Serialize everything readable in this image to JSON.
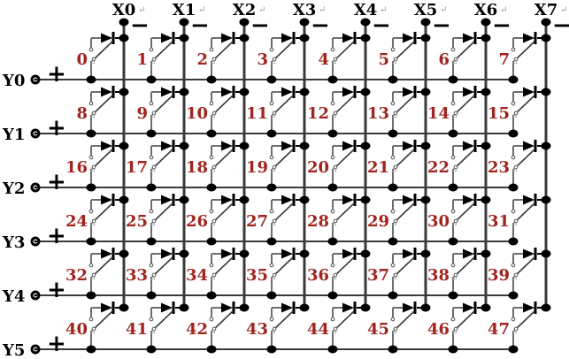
{
  "diagram": {
    "kind": "keyboard-matrix-circuit",
    "return_mark": "↵",
    "columns": [
      {
        "label": "X0",
        "sign": "−"
      },
      {
        "label": "X1",
        "sign": "−"
      },
      {
        "label": "X2",
        "sign": "−"
      },
      {
        "label": "X3",
        "sign": "−"
      },
      {
        "label": "X4",
        "sign": "−"
      },
      {
        "label": "X5",
        "sign": "−"
      },
      {
        "label": "X6",
        "sign": "−"
      },
      {
        "label": "X7",
        "sign": "−"
      }
    ],
    "rows": [
      {
        "label": "Y0",
        "sign": "+"
      },
      {
        "label": "Y1",
        "sign": "+"
      },
      {
        "label": "Y2",
        "sign": "+"
      },
      {
        "label": "Y3",
        "sign": "+"
      },
      {
        "label": "Y4",
        "sign": "+"
      },
      {
        "label": "Y5",
        "sign": "+"
      }
    ],
    "cells": [
      {
        "label": "0"
      },
      {
        "label": "1"
      },
      {
        "label": "2"
      },
      {
        "label": "3"
      },
      {
        "label": "4"
      },
      {
        "label": "5"
      },
      {
        "label": "6"
      },
      {
        "label": "7"
      },
      {
        "label": "8"
      },
      {
        "label": "9"
      },
      {
        "label": "10"
      },
      {
        "label": "11"
      },
      {
        "label": "12"
      },
      {
        "label": "13"
      },
      {
        "label": "14"
      },
      {
        "label": "15"
      },
      {
        "label": "16"
      },
      {
        "label": "17"
      },
      {
        "label": "18"
      },
      {
        "label": "19"
      },
      {
        "label": "20"
      },
      {
        "label": "21"
      },
      {
        "label": "22"
      },
      {
        "label": "23"
      },
      {
        "label": "24"
      },
      {
        "label": "25"
      },
      {
        "label": "26"
      },
      {
        "label": "27"
      },
      {
        "label": "28"
      },
      {
        "label": "29"
      },
      {
        "label": "30"
      },
      {
        "label": "31"
      },
      {
        "label": "32"
      },
      {
        "label": "33"
      },
      {
        "label": "34"
      },
      {
        "label": "35"
      },
      {
        "label": "36"
      },
      {
        "label": "37"
      },
      {
        "label": "38"
      },
      {
        "label": "39"
      },
      {
        "label": "40"
      },
      {
        "label": "41"
      },
      {
        "label": "42"
      },
      {
        "label": "43"
      },
      {
        "label": "44"
      },
      {
        "label": "45"
      },
      {
        "label": "46"
      },
      {
        "label": "47"
      }
    ],
    "colors": {
      "wire": "#3a3a3a",
      "switch_wire": "#6e6e6e",
      "component": "#000000",
      "cell_number": "#a1241e",
      "format_mark": "#9a9a9a",
      "background": "#ffffff"
    }
  }
}
